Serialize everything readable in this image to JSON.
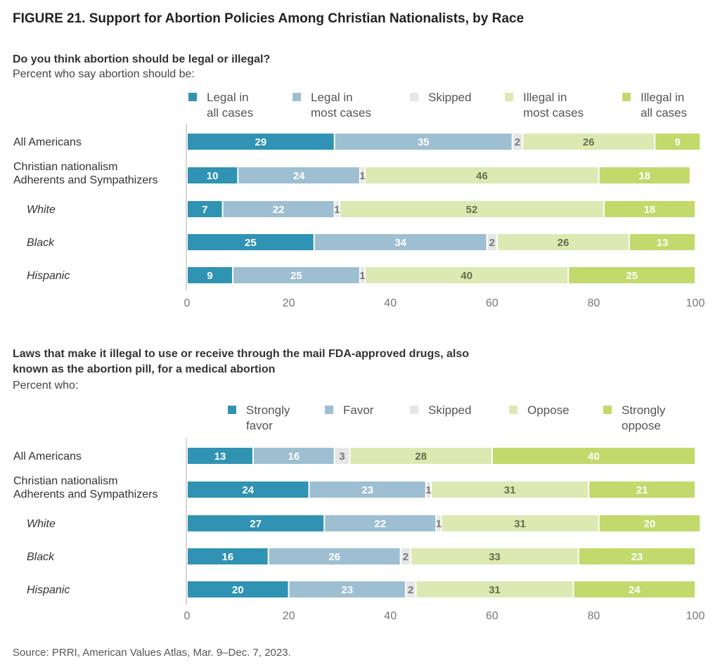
{
  "figure_title": "FIGURE 21. Support for Abortion Policies Among Christian Nationalists, by Race",
  "source": "Source: PRRI, American Values Atlas, Mar. 9–Dec. 7, 2023.",
  "colors": [
    "#3193b3",
    "#9ebfd1",
    "#e6e6e6",
    "#dde9b3",
    "#c2d96b"
  ],
  "chart_data": [
    {
      "type": "bar",
      "orientation": "horizontal-stacked",
      "title": "Do you think abortion should be legal or illegal?",
      "subtitle": "Percent who say abortion should be:",
      "legend": [
        "Legal in all cases",
        "Legal in most cases",
        "Skipped",
        "Illegal in most cases",
        "Illegal in all cases"
      ],
      "categories": [
        "All Americans",
        "Christian nationalism Adherents and Sympathizers",
        "White",
        "Black",
        "Hispanic"
      ],
      "values": [
        [
          29,
          35,
          2,
          26,
          9
        ],
        [
          10,
          24,
          1,
          46,
          18
        ],
        [
          7,
          22,
          1,
          52,
          18
        ],
        [
          25,
          34,
          2,
          26,
          13
        ],
        [
          9,
          25,
          1,
          40,
          25
        ]
      ],
      "xticks": [
        0,
        20,
        40,
        60,
        80,
        100
      ],
      "xlim": [
        0,
        100
      ]
    },
    {
      "type": "bar",
      "orientation": "horizontal-stacked",
      "title": "Laws that make it illegal to use or receive through the mail FDA-approved drugs, also known as the abortion pill, for a medical abortion",
      "subtitle": "Percent who:",
      "legend": [
        "Strongly favor",
        "Favor",
        "Skipped",
        "Oppose",
        "Strongly oppose"
      ],
      "categories": [
        "All Americans",
        "Christian nationalism Adherents and Sympathizers",
        "White",
        "Black",
        "Hispanic"
      ],
      "values": [
        [
          13,
          16,
          3,
          28,
          40
        ],
        [
          24,
          23,
          1,
          31,
          21
        ],
        [
          27,
          22,
          1,
          31,
          20
        ],
        [
          16,
          26,
          2,
          33,
          23
        ],
        [
          20,
          23,
          2,
          31,
          24
        ]
      ],
      "xticks": [
        0,
        20,
        40,
        60,
        80,
        100
      ],
      "xlim": [
        0,
        100
      ]
    }
  ]
}
